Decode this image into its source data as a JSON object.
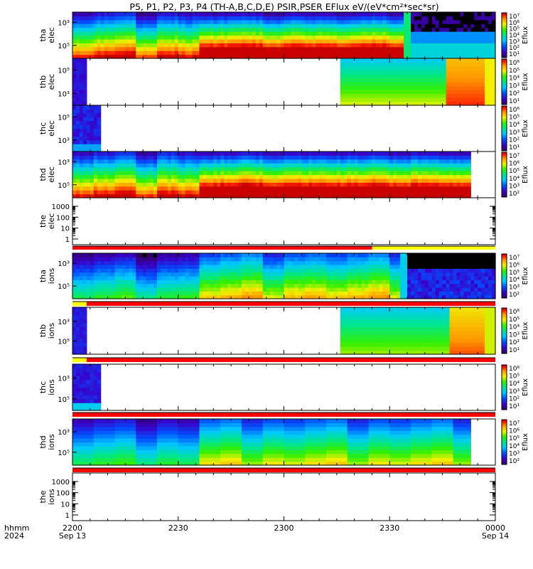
{
  "title": "P5, P1, P2, P3, P4 (TH-A,B,C,D,E) PSIR,PSER EFlux eV/(eV*cm²*sec*sr)",
  "colorbar_label": "Eflux",
  "time_axis": {
    "row1_label": "hhmm",
    "row2_label": "2024",
    "ticks": [
      {
        "t": 0,
        "label": "2200",
        "date": "Sep 13"
      },
      {
        "t": 30,
        "label": "2230",
        "date": ""
      },
      {
        "t": 60,
        "label": "2300",
        "date": ""
      },
      {
        "t": 90,
        "label": "2330",
        "date": ""
      },
      {
        "t": 120,
        "label": "0000",
        "date": "Sep 14"
      }
    ],
    "range_minutes": [
      0,
      120
    ]
  },
  "panels": [
    {
      "id": "tha-elec",
      "label1": "tha",
      "label2": "elec",
      "type": "spec",
      "yticks": [
        "10³",
        "10⁵"
      ],
      "cbar_ticks": [
        "10⁷",
        "10⁶",
        "10⁵",
        "10⁴",
        "10³",
        "10²",
        "10¹"
      ]
    },
    {
      "id": "thb-elec",
      "label1": "thb",
      "label2": "elec",
      "type": "spec",
      "yticks": [
        "10⁵",
        "10³"
      ],
      "cbar_ticks": [
        "10⁶",
        "10⁵",
        "10⁴",
        "10³",
        "10²",
        "10¹"
      ]
    },
    {
      "id": "thc-elec",
      "label1": "thc",
      "label2": "elec",
      "type": "spec",
      "yticks": [
        "10⁵",
        "10³"
      ],
      "cbar_ticks": [
        "10⁶",
        "10⁵",
        "10⁴",
        "10³",
        "10²",
        "10¹"
      ]
    },
    {
      "id": "thd-elec",
      "label1": "thd",
      "label2": "elec",
      "type": "spec",
      "yticks": [
        "10³",
        "10⁵"
      ],
      "cbar_ticks": [
        "10⁷",
        "10⁶",
        "10⁵",
        "10⁴",
        "10³",
        "10²"
      ]
    },
    {
      "id": "the-elec",
      "label1": "the",
      "label2": "elec",
      "type": "line",
      "yticks": [
        "1000",
        "100",
        "10",
        "1"
      ]
    },
    {
      "id": "tha-ions",
      "label1": "tha",
      "label2": "ions",
      "type": "spec",
      "yticks": [
        "10³",
        "10⁵"
      ],
      "cbar_ticks": [
        "10⁷",
        "10⁶",
        "10⁵",
        "10⁴",
        "10³",
        "10²"
      ]
    },
    {
      "id": "thb-ions",
      "label1": "thb",
      "label2": "ions",
      "type": "spec",
      "yticks": [
        "10³",
        "10⁵"
      ],
      "cbar_ticks": [
        "10⁶",
        "10⁵",
        "10⁴",
        "10³",
        "10²",
        "10¹"
      ]
    },
    {
      "id": "thc-ions",
      "label1": "thc",
      "label2": "ions",
      "type": "spec",
      "yticks": [
        "10³",
        "10⁵"
      ],
      "cbar_ticks": [
        "10⁶",
        "10⁵",
        "10⁴",
        "10³",
        "10²",
        "10¹"
      ]
    },
    {
      "id": "thd-ions",
      "label1": "thd",
      "label2": "ions",
      "type": "spec",
      "yticks": [
        "10³",
        "10⁵"
      ],
      "cbar_ticks": [
        "10⁷",
        "10⁶",
        "10⁵",
        "10⁴",
        "10³",
        "10²"
      ]
    },
    {
      "id": "the-ions",
      "label1": "the",
      "label2": "ions",
      "type": "line",
      "yticks": [
        "1000",
        "100",
        "10",
        "1"
      ]
    }
  ],
  "chart_data": {
    "type": "heatmap",
    "title": "P5, P1, P2, P3, P4 (TH-A,B,C,D,E) PSIR,PSER EFlux eV/(eV*cm²*sec*sr)",
    "x_unit": "time (UT), 2024 Sep 13 22:00 to Sep 14 00:00",
    "colorscale": "rainbow (purple = low, red = high)",
    "series": [
      {
        "name": "tha elec",
        "coverage_min": [
          0,
          110
        ],
        "cbar_range": [
          "10¹",
          "10⁷"
        ]
      },
      {
        "name": "thb elec",
        "coverage_min": [
          0,
          120
        ],
        "data_min": [
          [
            0,
            4
          ],
          [
            76,
            120
          ]
        ],
        "cbar_range": [
          "10¹",
          "10⁶"
        ]
      },
      {
        "name": "thc elec",
        "coverage_min": [
          0,
          8
        ],
        "cbar_range": [
          "10¹",
          "10⁶"
        ]
      },
      {
        "name": "thd elec",
        "coverage_min": [
          0,
          113
        ],
        "cbar_range": [
          "10²",
          "10⁷"
        ]
      },
      {
        "name": "the elec",
        "coverage_min": [],
        "ylim": [
          1,
          1000
        ]
      },
      {
        "name": "tha ions",
        "coverage_min": [
          0,
          120
        ],
        "cbar_range": [
          "10²",
          "10⁷"
        ]
      },
      {
        "name": "thb ions",
        "coverage_min": [
          0,
          120
        ],
        "data_min": [
          [
            0,
            4
          ],
          [
            76,
            120
          ]
        ],
        "cbar_range": [
          "10¹",
          "10⁶"
        ]
      },
      {
        "name": "thc ions",
        "coverage_min": [
          0,
          8
        ],
        "cbar_range": [
          "10¹",
          "10⁶"
        ]
      },
      {
        "name": "thd ions",
        "coverage_min": [
          0,
          113
        ],
        "cbar_range": [
          "10²",
          "10⁷"
        ]
      },
      {
        "name": "the ions",
        "coverage_min": [],
        "ylim": [
          1,
          1000
        ]
      }
    ]
  }
}
